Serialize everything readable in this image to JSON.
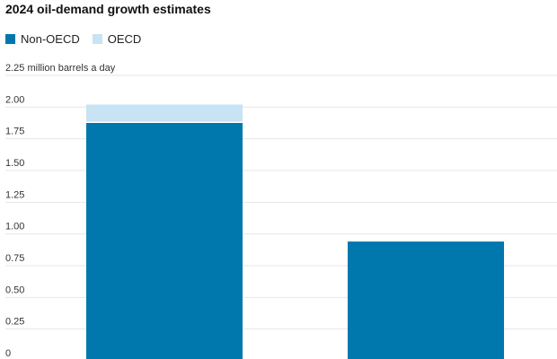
{
  "chart_data": {
    "type": "bar",
    "stacked": true,
    "title": "2024 oil-demand growth estimates",
    "unit_label": "million barrels a day",
    "categories": [
      "",
      ""
    ],
    "series": [
      {
        "name": "Non-OECD",
        "color": "#0077AD",
        "values": [
          1.88,
          0.94
        ]
      },
      {
        "name": "OECD",
        "color": "#C7E3F4",
        "values": [
          0.14,
          0.0
        ]
      }
    ],
    "ylim": [
      0,
      2.25
    ],
    "yticks": [
      "0",
      "0.25",
      "0.50",
      "0.75",
      "1.00",
      "1.25",
      "1.50",
      "1.75",
      "2.00",
      "2.25"
    ],
    "grid": true,
    "legend_position": "top-left"
  }
}
